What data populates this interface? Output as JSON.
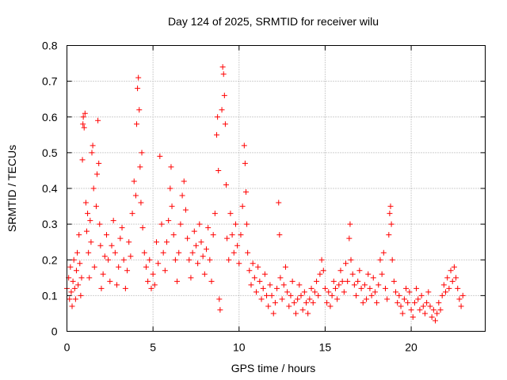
{
  "chart_data": {
    "type": "scatter",
    "title": "Day 124 of 2025, SRMTID for receiver wilu",
    "xlabel": "GPS time / hours",
    "ylabel": "SRMTID / TECUs",
    "xlim": [
      0,
      24.3
    ],
    "ylim": [
      0,
      0.8
    ],
    "grid": true,
    "legend": "none",
    "marker": "+",
    "color": "#ff0000",
    "xticks": [
      0,
      5,
      10,
      15,
      20
    ],
    "xtick_labels": [
      "0",
      "5",
      "10",
      "15",
      "20"
    ],
    "yticks": [
      0,
      0.1,
      0.2,
      0.3,
      0.4,
      0.5,
      0.6,
      0.7,
      0.8
    ],
    "ytick_labels": [
      "0",
      "0.1",
      "0.2",
      "0.3",
      "0.4",
      "0.5",
      "0.6",
      "0.7",
      "0.8"
    ],
    "series": [
      {
        "name": "SRMTID",
        "points": [
          [
            0.0,
            0.12
          ],
          [
            0.1,
            0.15
          ],
          [
            0.15,
            0.09
          ],
          [
            0.2,
            0.18
          ],
          [
            0.25,
            0.11
          ],
          [
            0.3,
            0.07
          ],
          [
            0.35,
            0.14
          ],
          [
            0.4,
            0.2
          ],
          [
            0.45,
            0.12
          ],
          [
            0.5,
            0.09
          ],
          [
            0.55,
            0.17
          ],
          [
            0.6,
            0.22
          ],
          [
            0.65,
            0.13
          ],
          [
            0.7,
            0.27
          ],
          [
            0.75,
            0.19
          ],
          [
            0.8,
            0.1
          ],
          [
            0.85,
            0.15
          ],
          [
            0.9,
            0.48
          ],
          [
            0.93,
            0.58
          ],
          [
            0.95,
            0.6
          ],
          [
            1.0,
            0.57
          ],
          [
            1.05,
            0.61
          ],
          [
            1.1,
            0.36
          ],
          [
            1.15,
            0.28
          ],
          [
            1.2,
            0.33
          ],
          [
            1.25,
            0.22
          ],
          [
            1.3,
            0.15
          ],
          [
            1.35,
            0.31
          ],
          [
            1.4,
            0.25
          ],
          [
            1.45,
            0.5
          ],
          [
            1.5,
            0.52
          ],
          [
            1.55,
            0.4
          ],
          [
            1.6,
            0.18
          ],
          [
            1.7,
            0.35
          ],
          [
            1.75,
            0.44
          ],
          [
            1.8,
            0.59
          ],
          [
            1.85,
            0.47
          ],
          [
            1.9,
            0.3
          ],
          [
            1.95,
            0.24
          ],
          [
            2.0,
            0.12
          ],
          [
            2.1,
            0.16
          ],
          [
            2.2,
            0.21
          ],
          [
            2.3,
            0.27
          ],
          [
            2.4,
            0.2
          ],
          [
            2.5,
            0.14
          ],
          [
            2.6,
            0.24
          ],
          [
            2.7,
            0.31
          ],
          [
            2.8,
            0.22
          ],
          [
            2.9,
            0.13
          ],
          [
            3.0,
            0.18
          ],
          [
            3.1,
            0.26
          ],
          [
            3.2,
            0.29
          ],
          [
            3.3,
            0.2
          ],
          [
            3.4,
            0.12
          ],
          [
            3.5,
            0.17
          ],
          [
            3.6,
            0.25
          ],
          [
            3.7,
            0.21
          ],
          [
            3.8,
            0.33
          ],
          [
            3.9,
            0.42
          ],
          [
            4.0,
            0.38
          ],
          [
            4.05,
            0.58
          ],
          [
            4.1,
            0.68
          ],
          [
            4.15,
            0.71
          ],
          [
            4.2,
            0.62
          ],
          [
            4.25,
            0.46
          ],
          [
            4.3,
            0.36
          ],
          [
            4.35,
            0.5
          ],
          [
            4.4,
            0.29
          ],
          [
            4.5,
            0.22
          ],
          [
            4.6,
            0.18
          ],
          [
            4.7,
            0.14
          ],
          [
            4.8,
            0.2
          ],
          [
            4.9,
            0.12
          ],
          [
            5.0,
            0.16
          ],
          [
            5.1,
            0.13
          ],
          [
            5.2,
            0.25
          ],
          [
            5.3,
            0.19
          ],
          [
            5.4,
            0.49
          ],
          [
            5.5,
            0.3
          ],
          [
            5.6,
            0.22
          ],
          [
            5.7,
            0.17
          ],
          [
            5.8,
            0.25
          ],
          [
            5.9,
            0.31
          ],
          [
            6.0,
            0.4
          ],
          [
            6.05,
            0.46
          ],
          [
            6.1,
            0.35
          ],
          [
            6.2,
            0.27
          ],
          [
            6.3,
            0.2
          ],
          [
            6.4,
            0.14
          ],
          [
            6.5,
            0.22
          ],
          [
            6.6,
            0.3
          ],
          [
            6.7,
            0.38
          ],
          [
            6.8,
            0.42
          ],
          [
            6.9,
            0.34
          ],
          [
            7.0,
            0.26
          ],
          [
            7.1,
            0.2
          ],
          [
            7.2,
            0.15
          ],
          [
            7.3,
            0.22
          ],
          [
            7.4,
            0.28
          ],
          [
            7.5,
            0.24
          ],
          [
            7.6,
            0.19
          ],
          [
            7.7,
            0.3
          ],
          [
            7.8,
            0.25
          ],
          [
            7.9,
            0.21
          ],
          [
            8.0,
            0.16
          ],
          [
            8.1,
            0.23
          ],
          [
            8.2,
            0.29
          ],
          [
            8.3,
            0.2
          ],
          [
            8.4,
            0.14
          ],
          [
            8.5,
            0.27
          ],
          [
            8.6,
            0.33
          ],
          [
            8.7,
            0.55
          ],
          [
            8.75,
            0.6
          ],
          [
            8.8,
            0.45
          ],
          [
            8.85,
            0.09
          ],
          [
            8.9,
            0.06
          ],
          [
            9.0,
            0.62
          ],
          [
            9.05,
            0.74
          ],
          [
            9.1,
            0.72
          ],
          [
            9.15,
            0.66
          ],
          [
            9.2,
            0.58
          ],
          [
            9.25,
            0.41
          ],
          [
            9.3,
            0.26
          ],
          [
            9.4,
            0.2
          ],
          [
            9.5,
            0.33
          ],
          [
            9.6,
            0.27
          ],
          [
            9.7,
            0.22
          ],
          [
            9.8,
            0.3
          ],
          [
            9.9,
            0.24
          ],
          [
            10.0,
            0.19
          ],
          [
            10.1,
            0.27
          ],
          [
            10.2,
            0.35
          ],
          [
            10.3,
            0.52
          ],
          [
            10.35,
            0.47
          ],
          [
            10.4,
            0.39
          ],
          [
            10.45,
            0.3
          ],
          [
            10.5,
            0.22
          ],
          [
            10.6,
            0.17
          ],
          [
            10.7,
            0.13
          ],
          [
            10.8,
            0.19
          ],
          [
            10.9,
            0.15
          ],
          [
            11.0,
            0.11
          ],
          [
            11.1,
            0.18
          ],
          [
            11.2,
            0.14
          ],
          [
            11.3,
            0.09
          ],
          [
            11.4,
            0.12
          ],
          [
            11.5,
            0.16
          ],
          [
            11.6,
            0.1
          ],
          [
            11.7,
            0.07
          ],
          [
            11.8,
            0.13
          ],
          [
            11.9,
            0.1
          ],
          [
            12.0,
            0.05
          ],
          [
            12.1,
            0.08
          ],
          [
            12.2,
            0.12
          ],
          [
            12.3,
            0.36
          ],
          [
            12.35,
            0.27
          ],
          [
            12.4,
            0.15
          ],
          [
            12.5,
            0.09
          ],
          [
            12.6,
            0.13
          ],
          [
            12.7,
            0.18
          ],
          [
            12.8,
            0.11
          ],
          [
            12.9,
            0.07
          ],
          [
            13.0,
            0.1
          ],
          [
            13.1,
            0.14
          ],
          [
            13.2,
            0.08
          ],
          [
            13.3,
            0.05
          ],
          [
            13.4,
            0.09
          ],
          [
            13.5,
            0.13
          ],
          [
            13.6,
            0.1
          ],
          [
            13.7,
            0.06
          ],
          [
            13.8,
            0.11
          ],
          [
            13.9,
            0.08
          ],
          [
            14.0,
            0.05
          ],
          [
            14.1,
            0.09
          ],
          [
            14.2,
            0.12
          ],
          [
            14.3,
            0.08
          ],
          [
            14.4,
            0.11
          ],
          [
            14.5,
            0.14
          ],
          [
            14.6,
            0.1
          ],
          [
            14.7,
            0.16
          ],
          [
            14.8,
            0.2
          ],
          [
            14.9,
            0.17
          ],
          [
            15.0,
            0.12
          ],
          [
            15.1,
            0.08
          ],
          [
            15.2,
            0.11
          ],
          [
            15.3,
            0.07
          ],
          [
            15.4,
            0.1
          ],
          [
            15.5,
            0.14
          ],
          [
            15.6,
            0.12
          ],
          [
            15.7,
            0.09
          ],
          [
            15.8,
            0.13
          ],
          [
            15.9,
            0.17
          ],
          [
            16.0,
            0.14
          ],
          [
            16.1,
            0.11
          ],
          [
            16.2,
            0.19
          ],
          [
            16.3,
            0.14
          ],
          [
            16.4,
            0.26
          ],
          [
            16.45,
            0.3
          ],
          [
            16.5,
            0.2
          ],
          [
            16.6,
            0.16
          ],
          [
            16.7,
            0.13
          ],
          [
            16.8,
            0.1
          ],
          [
            16.9,
            0.14
          ],
          [
            17.0,
            0.17
          ],
          [
            17.1,
            0.12
          ],
          [
            17.2,
            0.08
          ],
          [
            17.3,
            0.13
          ],
          [
            17.4,
            0.09
          ],
          [
            17.5,
            0.16
          ],
          [
            17.6,
            0.12
          ],
          [
            17.7,
            0.1
          ],
          [
            17.8,
            0.15
          ],
          [
            17.9,
            0.11
          ],
          [
            18.0,
            0.08
          ],
          [
            18.1,
            0.13
          ],
          [
            18.2,
            0.2
          ],
          [
            18.3,
            0.16
          ],
          [
            18.4,
            0.22
          ],
          [
            18.5,
            0.12
          ],
          [
            18.6,
            0.09
          ],
          [
            18.7,
            0.27
          ],
          [
            18.75,
            0.33
          ],
          [
            18.8,
            0.35
          ],
          [
            18.85,
            0.3
          ],
          [
            18.9,
            0.2
          ],
          [
            19.0,
            0.14
          ],
          [
            19.1,
            0.11
          ],
          [
            19.2,
            0.08
          ],
          [
            19.3,
            0.1
          ],
          [
            19.4,
            0.07
          ],
          [
            19.5,
            0.05
          ],
          [
            19.6,
            0.09
          ],
          [
            19.7,
            0.12
          ],
          [
            19.8,
            0.08
          ],
          [
            19.9,
            0.11
          ],
          [
            20.0,
            0.06
          ],
          [
            20.1,
            0.04
          ],
          [
            20.2,
            0.08
          ],
          [
            20.3,
            0.12
          ],
          [
            20.4,
            0.09
          ],
          [
            20.5,
            0.06
          ],
          [
            20.6,
            0.1
          ],
          [
            20.7,
            0.07
          ],
          [
            20.8,
            0.05
          ],
          [
            20.9,
            0.08
          ],
          [
            21.0,
            0.11
          ],
          [
            21.1,
            0.07
          ],
          [
            21.2,
            0.04
          ],
          [
            21.3,
            0.06
          ],
          [
            21.4,
            0.03
          ],
          [
            21.5,
            0.05
          ],
          [
            21.6,
            0.08
          ],
          [
            21.7,
            0.06
          ],
          [
            21.8,
            0.1
          ],
          [
            21.9,
            0.13
          ],
          [
            22.0,
            0.11
          ],
          [
            22.1,
            0.15
          ],
          [
            22.2,
            0.12
          ],
          [
            22.3,
            0.17
          ],
          [
            22.4,
            0.14
          ],
          [
            22.5,
            0.18
          ],
          [
            22.6,
            0.15
          ],
          [
            22.7,
            0.12
          ],
          [
            22.8,
            0.09
          ],
          [
            22.9,
            0.07
          ],
          [
            23.0,
            0.1
          ]
        ]
      }
    ]
  }
}
